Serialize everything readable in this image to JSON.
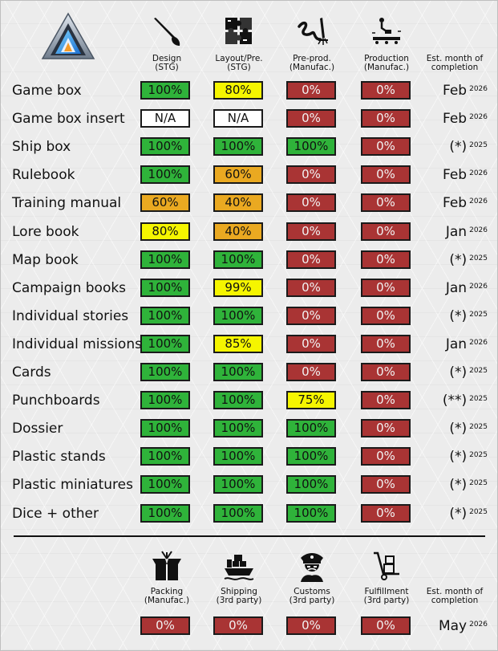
{
  "colors": {
    "green": "#2fb33a",
    "yellow": "#f5f500",
    "orange": "#eaa921",
    "red": "#a93434",
    "white": "#ffffff"
  },
  "top_header": {
    "columns": [
      {
        "icon": "brush-icon",
        "line1": "Design",
        "line2": "(STG)"
      },
      {
        "icon": "puzzle-icon",
        "line1": "Layout/Pre.",
        "line2": "(STG)"
      },
      {
        "icon": "signature-icon",
        "line1": "Pre-prod.",
        "line2": "(Manufac.)"
      },
      {
        "icon": "factory-icon",
        "line1": "Production",
        "line2": "(Manufac.)"
      }
    ],
    "est_line1": "Est. month of",
    "est_line2": "completion"
  },
  "rows": [
    {
      "label": "Game box",
      "cells": [
        {
          "v": "100%",
          "c": "green"
        },
        {
          "v": "80%",
          "c": "yellow"
        },
        {
          "v": "0%",
          "c": "red"
        },
        {
          "v": "0%",
          "c": "red"
        }
      ],
      "est": "Feb",
      "year": "2026"
    },
    {
      "label": "Game box insert",
      "cells": [
        {
          "v": "N/A",
          "c": "white"
        },
        {
          "v": "N/A",
          "c": "white"
        },
        {
          "v": "0%",
          "c": "red"
        },
        {
          "v": "0%",
          "c": "red"
        }
      ],
      "est": "Feb",
      "year": "2026"
    },
    {
      "label": "Ship box",
      "cells": [
        {
          "v": "100%",
          "c": "green"
        },
        {
          "v": "100%",
          "c": "green"
        },
        {
          "v": "100%",
          "c": "green"
        },
        {
          "v": "0%",
          "c": "red"
        }
      ],
      "est": "(*)",
      "year": "2025"
    },
    {
      "label": "Rulebook",
      "cells": [
        {
          "v": "100%",
          "c": "green"
        },
        {
          "v": "60%",
          "c": "orange"
        },
        {
          "v": "0%",
          "c": "red"
        },
        {
          "v": "0%",
          "c": "red"
        }
      ],
      "est": "Feb",
      "year": "2026"
    },
    {
      "label": "Training manual",
      "cells": [
        {
          "v": "60%",
          "c": "orange"
        },
        {
          "v": "40%",
          "c": "orange"
        },
        {
          "v": "0%",
          "c": "red"
        },
        {
          "v": "0%",
          "c": "red"
        }
      ],
      "est": "Feb",
      "year": "2026"
    },
    {
      "label": "Lore book",
      "cells": [
        {
          "v": "80%",
          "c": "yellow"
        },
        {
          "v": "40%",
          "c": "orange"
        },
        {
          "v": "0%",
          "c": "red"
        },
        {
          "v": "0%",
          "c": "red"
        }
      ],
      "est": "Jan",
      "year": "2026"
    },
    {
      "label": "Map book",
      "cells": [
        {
          "v": "100%",
          "c": "green"
        },
        {
          "v": "100%",
          "c": "green"
        },
        {
          "v": "0%",
          "c": "red"
        },
        {
          "v": "0%",
          "c": "red"
        }
      ],
      "est": "(*)",
      "year": "2025"
    },
    {
      "label": "Campaign books",
      "cells": [
        {
          "v": "100%",
          "c": "green"
        },
        {
          "v": "99%",
          "c": "yellow"
        },
        {
          "v": "0%",
          "c": "red"
        },
        {
          "v": "0%",
          "c": "red"
        }
      ],
      "est": "Jan",
      "year": "2026"
    },
    {
      "label": "Individual stories",
      "cells": [
        {
          "v": "100%",
          "c": "green"
        },
        {
          "v": "100%",
          "c": "green"
        },
        {
          "v": "0%",
          "c": "red"
        },
        {
          "v": "0%",
          "c": "red"
        }
      ],
      "est": "(*)",
      "year": "2025"
    },
    {
      "label": "Individual missions",
      "cells": [
        {
          "v": "100%",
          "c": "green"
        },
        {
          "v": "85%",
          "c": "yellow"
        },
        {
          "v": "0%",
          "c": "red"
        },
        {
          "v": "0%",
          "c": "red"
        }
      ],
      "est": "Jan",
      "year": "2026"
    },
    {
      "label": "Cards",
      "cells": [
        {
          "v": "100%",
          "c": "green"
        },
        {
          "v": "100%",
          "c": "green"
        },
        {
          "v": "0%",
          "c": "red"
        },
        {
          "v": "0%",
          "c": "red"
        }
      ],
      "est": "(*)",
      "year": "2025"
    },
    {
      "label": "Punchboards",
      "cells": [
        {
          "v": "100%",
          "c": "green"
        },
        {
          "v": "100%",
          "c": "green"
        },
        {
          "v": "75%",
          "c": "yellow"
        },
        {
          "v": "0%",
          "c": "red"
        }
      ],
      "est": "(**)",
      "year": "2025"
    },
    {
      "label": "Dossier",
      "cells": [
        {
          "v": "100%",
          "c": "green"
        },
        {
          "v": "100%",
          "c": "green"
        },
        {
          "v": "100%",
          "c": "green"
        },
        {
          "v": "0%",
          "c": "red"
        }
      ],
      "est": "(*)",
      "year": "2025"
    },
    {
      "label": "Plastic stands",
      "cells": [
        {
          "v": "100%",
          "c": "green"
        },
        {
          "v": "100%",
          "c": "green"
        },
        {
          "v": "100%",
          "c": "green"
        },
        {
          "v": "0%",
          "c": "red"
        }
      ],
      "est": "(*)",
      "year": "2025"
    },
    {
      "label": "Plastic miniatures",
      "cells": [
        {
          "v": "100%",
          "c": "green"
        },
        {
          "v": "100%",
          "c": "green"
        },
        {
          "v": "100%",
          "c": "green"
        },
        {
          "v": "0%",
          "c": "red"
        }
      ],
      "est": "(*)",
      "year": "2025"
    },
    {
      "label": "Dice + other",
      "cells": [
        {
          "v": "100%",
          "c": "green"
        },
        {
          "v": "100%",
          "c": "green"
        },
        {
          "v": "100%",
          "c": "green"
        },
        {
          "v": "0%",
          "c": "red"
        }
      ],
      "est": "(*)",
      "year": "2025"
    }
  ],
  "bottom_header": {
    "columns": [
      {
        "icon": "package-icon",
        "line1": "Packing",
        "line2": "(Manufac.)"
      },
      {
        "icon": "ship-icon",
        "line1": "Shipping",
        "line2": "(3rd party)"
      },
      {
        "icon": "customs-officer-icon",
        "line1": "Customs",
        "line2": "(3rd party)"
      },
      {
        "icon": "hand-truck-icon",
        "line1": "Fulfillment",
        "line2": "(3rd party)"
      }
    ],
    "est_line1": "Est. month of",
    "est_line2": "completion"
  },
  "bottom_row": {
    "cells": [
      {
        "v": "0%",
        "c": "red"
      },
      {
        "v": "0%",
        "c": "red"
      },
      {
        "v": "0%",
        "c": "red"
      },
      {
        "v": "0%",
        "c": "red"
      }
    ],
    "est": "May",
    "year": "2026"
  }
}
